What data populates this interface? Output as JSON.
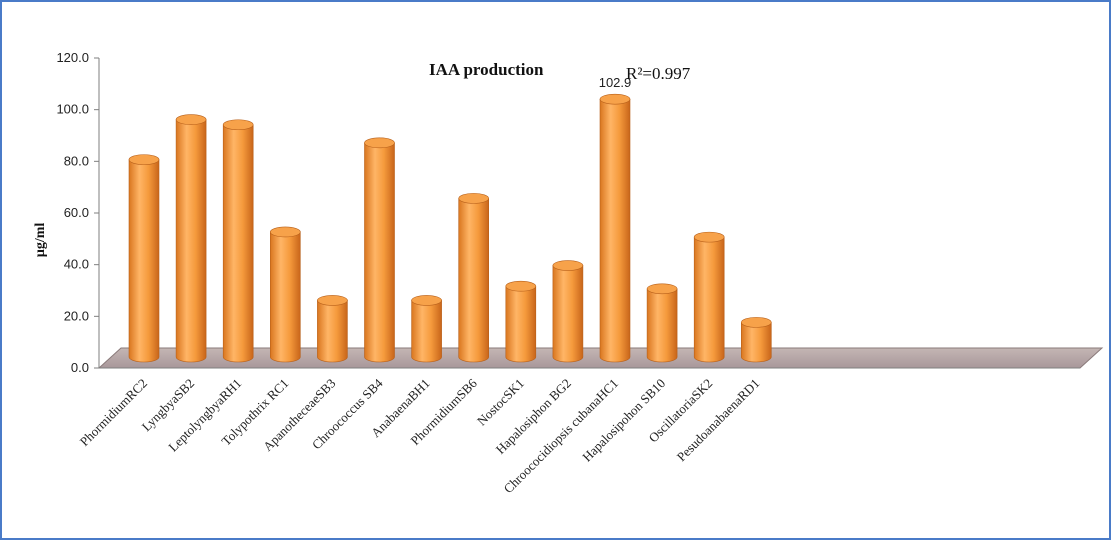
{
  "chart_data": {
    "type": "bar",
    "title": "IAA production",
    "annotation": "R²=0.997",
    "ylabel": "µg/ml",
    "xlabel": "",
    "ylim": [
      0,
      120
    ],
    "yticks": [
      "0.0",
      "20.0",
      "40.0",
      "60.0",
      "80.0",
      "100.0",
      "120.0"
    ],
    "categories": [
      "PhormidiumRC2",
      "LyngbyaSB2",
      "LeptolyngbyaRH1",
      "Tolypothrix RC1",
      "ApanotheceaeSB3",
      "Chroococcus SB4",
      "AnabaenaBH1",
      "PhormidiumSB6",
      "NostocSK1",
      "Hapalosiphon BG2",
      "Chroococidiopsis cubanaHC1",
      "Hapalosipohon SB10",
      "OscillatoriaSK2",
      "PesudoanabaenaRD1"
    ],
    "values": [
      79.5,
      95.0,
      93.0,
      51.5,
      25.0,
      86.0,
      25.0,
      64.5,
      30.5,
      38.5,
      102.9,
      29.5,
      49.5,
      16.5
    ],
    "data_labels": [
      "",
      "",
      "",
      "",
      "",
      "",
      "",
      "",
      "",
      "",
      "102.9",
      "",
      "",
      ""
    ],
    "grid": false,
    "legend": "none",
    "colors": {
      "bar": "#f59a3c",
      "bar_light": "#ffc07a",
      "bar_dark": "#c86a1a",
      "floor": "#b3a3a1",
      "frame": "#4a7bc8"
    }
  }
}
